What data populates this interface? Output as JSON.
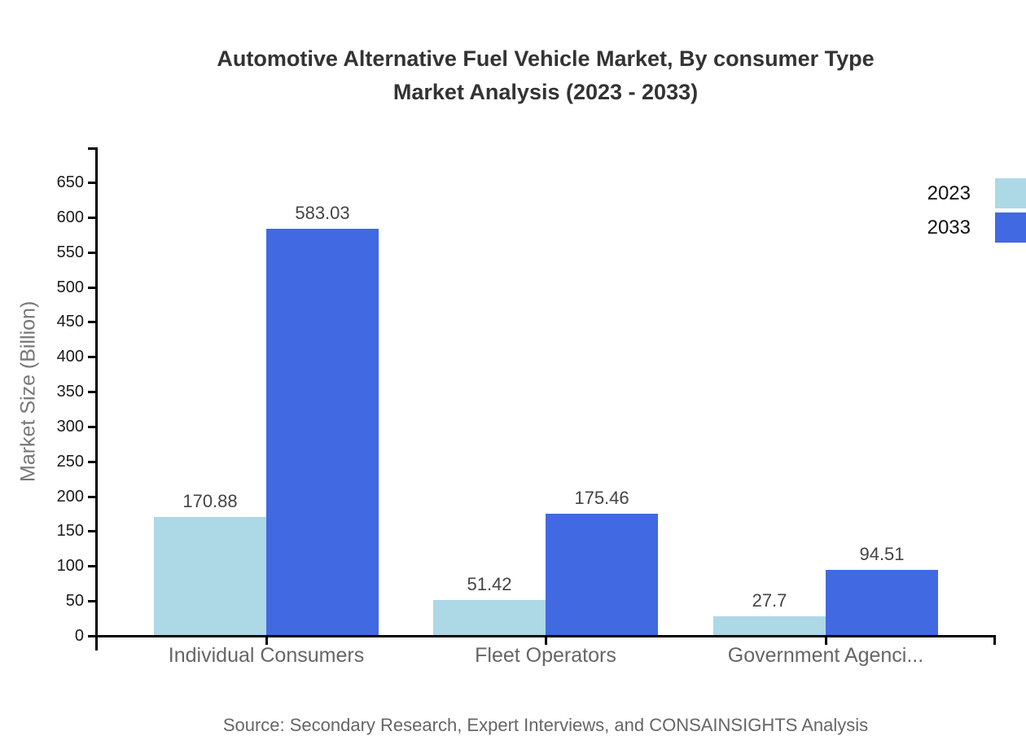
{
  "title_display": {
    "line1": "Automotive Alternative Fuel Vehicle Market, By consumer Type",
    "line2": "Market Analysis (2023 - 2033)"
  },
  "source": "Source: Secondary Research, Expert Interviews, and CONSAINSIGHTS Analysis",
  "chart_data": {
    "type": "bar",
    "title": "Automotive Alternative Fuel Vehicle Market, By consumer Type Market Analysis (2023 - 2033)",
    "categories": [
      "Individual Consumers",
      "Fleet Operators",
      "Government Agenci..."
    ],
    "series": [
      {
        "name": "2023",
        "color": "#ADD8E6",
        "values": [
          170.88,
          51.42,
          27.7
        ]
      },
      {
        "name": "2033",
        "color": "#4169E1",
        "values": [
          583.03,
          175.46,
          94.51
        ]
      }
    ],
    "xlabel": "",
    "ylabel": "Market Size (Billion)",
    "ylim": [
      0,
      700
    ],
    "yticks": [
      0,
      50,
      100,
      150,
      200,
      250,
      300,
      350,
      400,
      450,
      500,
      550,
      600,
      650
    ],
    "legend": [
      "2023",
      "2033"
    ],
    "legend_position": "top-right",
    "grid": false,
    "axis_color": "#000000"
  }
}
